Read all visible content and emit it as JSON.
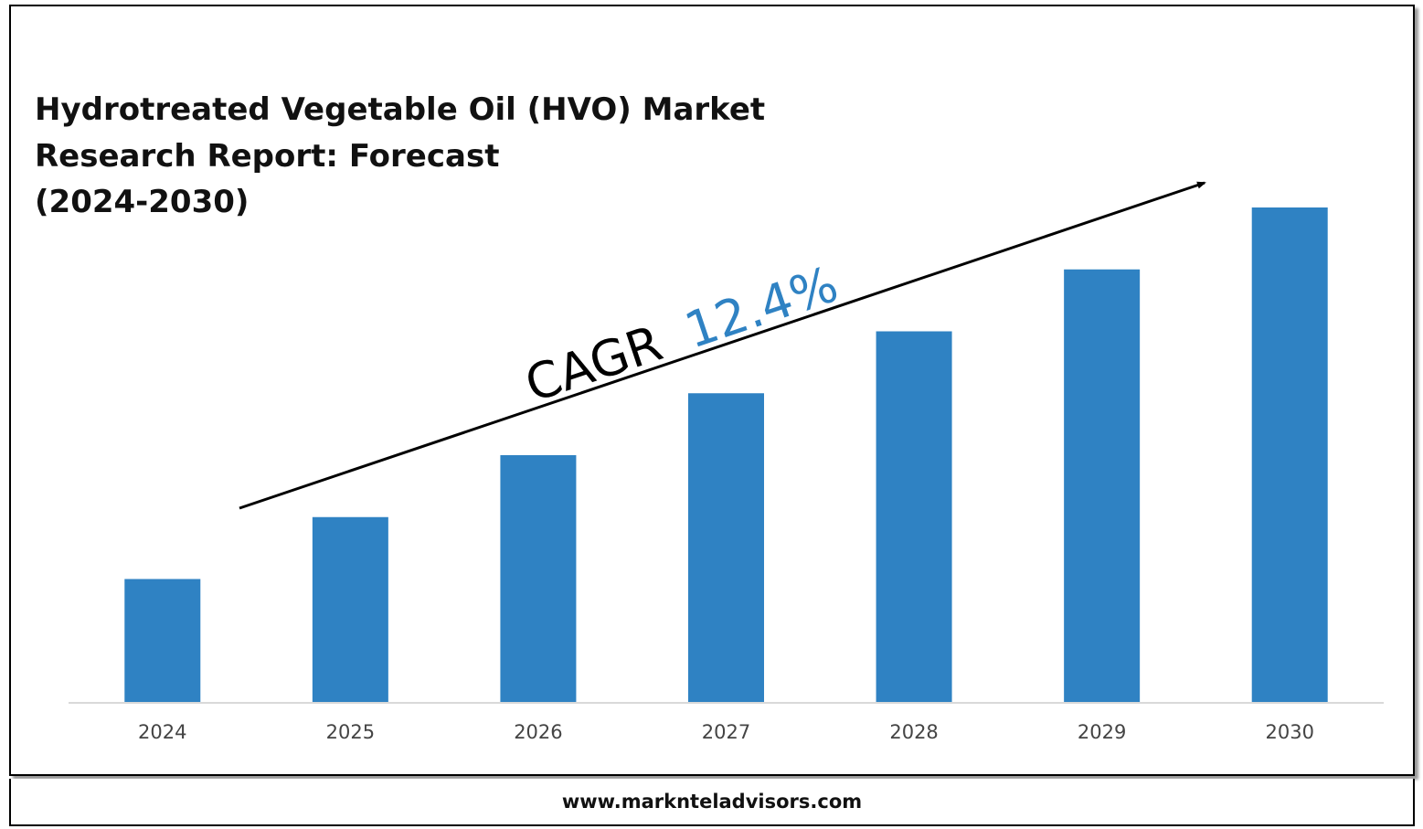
{
  "chart_data": {
    "type": "bar",
    "title_lines": [
      "Hydrotreated Vegetable Oil (HVO) Market",
      "Research Report: Forecast",
      "(2024-2030)"
    ],
    "categories": [
      "2024",
      "2025",
      "2026",
      "2027",
      "2028",
      "2029",
      "2030"
    ],
    "values": [
      1.0,
      1.5,
      2.0,
      2.5,
      3.0,
      3.5,
      4.0
    ],
    "ylim": [
      0,
      4.0
    ],
    "grid": false,
    "bar_color": "#2f82c3",
    "annotation": {
      "prefix": "CAGR",
      "value": "12.4%",
      "prefix_color": "#000000",
      "value_color": "#2f82c3"
    }
  },
  "footer": {
    "website": "www.marknteladvisors.com"
  }
}
